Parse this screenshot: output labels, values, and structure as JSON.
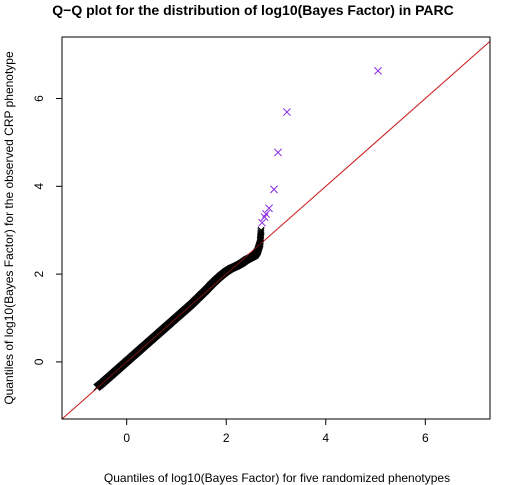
{
  "chart_data": {
    "type": "scatter",
    "title": "Q−Q plot for the distribution of log10(Bayes Factor) in PARC",
    "xlabel": "Quantiles of log10(Bayes Factor) for five randomized phenotypes",
    "ylabel": "Quantiles of log10(Bayes Factor) for the observed CRP phenotype",
    "xlim": [
      -1.3,
      7.3
    ],
    "ylim": [
      -1.3,
      7.4
    ],
    "x_ticks": [
      0,
      2,
      4,
      6
    ],
    "y_ticks": [
      0,
      2,
      4,
      6
    ],
    "x_tick_labels": [
      "0",
      "2",
      "4",
      "6"
    ],
    "y_tick_labels": [
      "0",
      "2",
      "4",
      "6"
    ],
    "grid": false,
    "reference_line": {
      "slope": 1,
      "intercept": 0,
      "color": "#cc2222"
    },
    "marker": "x",
    "series": [
      {
        "color": "#000000",
        "points": [
          [
            -0.6,
            -0.58
          ],
          [
            -0.5,
            -0.49
          ],
          [
            -0.4,
            -0.39
          ],
          [
            -0.3,
            -0.29
          ],
          [
            -0.2,
            -0.19
          ],
          [
            -0.1,
            -0.09
          ],
          [
            0.0,
            0.01
          ],
          [
            0.1,
            0.11
          ],
          [
            0.2,
            0.21
          ],
          [
            0.3,
            0.31
          ],
          [
            0.4,
            0.41
          ],
          [
            0.5,
            0.51
          ],
          [
            0.6,
            0.61
          ],
          [
            0.7,
            0.71
          ],
          [
            0.8,
            0.81
          ],
          [
            0.9,
            0.91
          ],
          [
            1.0,
            1.01
          ],
          [
            1.1,
            1.11
          ],
          [
            1.2,
            1.21
          ],
          [
            1.3,
            1.31
          ],
          [
            1.4,
            1.42
          ],
          [
            1.5,
            1.53
          ],
          [
            1.6,
            1.64
          ],
          [
            1.7,
            1.76
          ],
          [
            1.8,
            1.87
          ],
          [
            1.9,
            1.97
          ],
          [
            2.0,
            2.06
          ],
          [
            2.1,
            2.13
          ],
          [
            2.2,
            2.18
          ],
          [
            2.3,
            2.24
          ],
          [
            2.4,
            2.32
          ],
          [
            2.5,
            2.38
          ],
          [
            2.58,
            2.43
          ],
          [
            2.63,
            2.52
          ],
          [
            2.68,
            2.7
          ],
          [
            2.7,
            3.0
          ]
        ]
      },
      {
        "color": "#8a2be2",
        "points": [
          [
            2.72,
            3.17
          ],
          [
            2.77,
            3.3
          ],
          [
            2.8,
            3.37
          ],
          [
            2.86,
            3.5
          ],
          [
            2.96,
            3.93
          ],
          [
            3.04,
            4.77
          ],
          [
            3.22,
            5.69
          ],
          [
            5.05,
            6.63
          ]
        ]
      }
    ]
  }
}
